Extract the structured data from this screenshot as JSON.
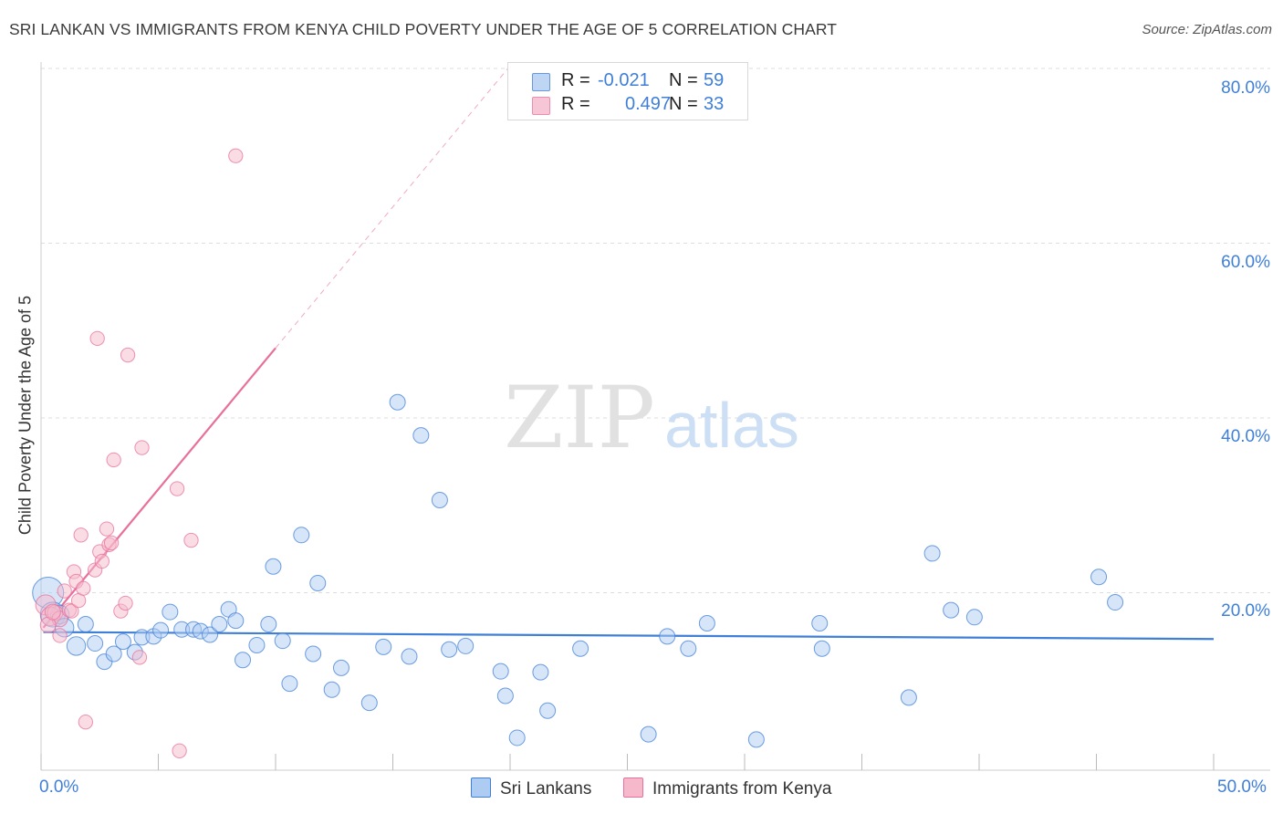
{
  "title": "SRI LANKAN VS IMMIGRANTS FROM KENYA CHILD POVERTY UNDER THE AGE OF 5 CORRELATION CHART",
  "source": "Source: ZipAtlas.com",
  "watermark": {
    "zip": "ZIP",
    "atlas": "atlas"
  },
  "colors": {
    "blue": "#3f7fd8",
    "blue_fill": "#aecbf2",
    "pink": "#e8709a",
    "pink_fill": "#f6b9cc",
    "grid": "#dddddd"
  },
  "legend": {
    "rows": [
      {
        "r_label": "R =",
        "r_value": "-0.021",
        "n_label": "N =",
        "n_value": "59"
      },
      {
        "r_label": "R =",
        "r_value": "0.497",
        "n_label": "N =",
        "n_value": "33"
      }
    ]
  },
  "bottom_legend": {
    "series1": "Sri Lankans",
    "series2": "Immigrants from Kenya"
  },
  "chart_data": {
    "type": "scatter",
    "title": "SRI LANKAN VS IMMIGRANTS FROM KENYA CHILD POVERTY UNDER THE AGE OF 5 CORRELATION CHART",
    "ylabel": "Child Poverty Under the Age of 5",
    "xlabel": "",
    "xlim": [
      0,
      50
    ],
    "ylim": [
      0,
      80
    ],
    "x_tick_labels": {
      "min": "0.0%",
      "max": "50.0%"
    },
    "y_tick_labels": [
      "20.0%",
      "40.0%",
      "60.0%",
      "80.0%"
    ],
    "y_tick_values": [
      20,
      40,
      60,
      80
    ],
    "series": [
      {
        "name": "Sri Lankans",
        "r": -0.021,
        "n": 59,
        "trend": {
          "x0": 0.1,
          "y0": 15.5,
          "x1": 50,
          "y1": 14.7
        },
        "points": [
          [
            0.3,
            20.0,
            2.0
          ],
          [
            0.5,
            17.5,
            1.6
          ],
          [
            0.8,
            17.5,
            1.2
          ],
          [
            1.0,
            16.0,
            1.2
          ],
          [
            1.5,
            13.9,
            1.2
          ],
          [
            1.9,
            16.4,
            1.0
          ],
          [
            2.3,
            14.2,
            1.0
          ],
          [
            2.7,
            12.1,
            1.0
          ],
          [
            3.1,
            13.0,
            1.0
          ],
          [
            3.5,
            14.4,
            1.0
          ],
          [
            4.0,
            13.2,
            1.0
          ],
          [
            4.3,
            14.9,
            1.0
          ],
          [
            4.8,
            15.0,
            1.0
          ],
          [
            5.1,
            15.7,
            1.0
          ],
          [
            5.5,
            17.8,
            1.0
          ],
          [
            6.0,
            15.8,
            1.0
          ],
          [
            6.5,
            15.8,
            1.0
          ],
          [
            6.8,
            15.6,
            1.0
          ],
          [
            7.2,
            15.2,
            1.0
          ],
          [
            7.6,
            16.4,
            1.0
          ],
          [
            8.0,
            18.1,
            1.0
          ],
          [
            8.3,
            16.8,
            1.0
          ],
          [
            8.6,
            12.3,
            1.0
          ],
          [
            9.2,
            14.0,
            1.0
          ],
          [
            9.7,
            16.4,
            1.0
          ],
          [
            9.9,
            23.0,
            1.0
          ],
          [
            10.3,
            14.5,
            1.0
          ],
          [
            10.6,
            9.6,
            1.0
          ],
          [
            11.1,
            26.6,
            1.0
          ],
          [
            11.6,
            13.0,
            1.0
          ],
          [
            11.8,
            21.1,
            1.0
          ],
          [
            12.4,
            8.9,
            1.0
          ],
          [
            12.8,
            11.4,
            1.0
          ],
          [
            14.0,
            7.4,
            1.0
          ],
          [
            14.6,
            13.8,
            1.0
          ],
          [
            15.7,
            12.7,
            1.0
          ],
          [
            15.2,
            41.8,
            1.0
          ],
          [
            16.2,
            38.0,
            1.0
          ],
          [
            17.0,
            30.6,
            1.0
          ],
          [
            17.4,
            13.5,
            1.0
          ],
          [
            18.1,
            13.9,
            1.0
          ],
          [
            19.6,
            11.0,
            1.0
          ],
          [
            19.8,
            8.2,
            1.0
          ],
          [
            20.3,
            3.4,
            1.0
          ],
          [
            21.3,
            10.9,
            1.0
          ],
          [
            21.6,
            6.5,
            1.0
          ],
          [
            23.0,
            13.6,
            1.0
          ],
          [
            25.9,
            3.8,
            1.0
          ],
          [
            26.7,
            15.0,
            1.0
          ],
          [
            27.6,
            13.6,
            1.0
          ],
          [
            28.4,
            16.5,
            1.0
          ],
          [
            30.5,
            3.2,
            1.0
          ],
          [
            33.2,
            16.5,
            1.0
          ],
          [
            33.3,
            13.6,
            1.0
          ],
          [
            37.0,
            8.0,
            1.0
          ],
          [
            38.0,
            24.5,
            1.0
          ],
          [
            38.8,
            18.0,
            1.0
          ],
          [
            39.8,
            17.2,
            1.0
          ],
          [
            45.1,
            21.8,
            1.0
          ],
          [
            45.8,
            18.9,
            1.0
          ]
        ]
      },
      {
        "name": "Immigrants from Kenya",
        "r": 0.497,
        "n": 33,
        "trend": {
          "x0": 0.1,
          "y0": 16.0,
          "x1": 10.0,
          "y1": 48.0,
          "x2": 20.0,
          "y2": 80.3
        },
        "points": [
          [
            0.2,
            18.6,
            1.3
          ],
          [
            0.4,
            17.3,
            1.2
          ],
          [
            0.6,
            17.7,
            1.0
          ],
          [
            0.8,
            17.0,
            1.0
          ],
          [
            0.8,
            15.1,
            0.9
          ],
          [
            1.0,
            20.2,
            0.9
          ],
          [
            1.2,
            18.0,
            0.9
          ],
          [
            1.3,
            17.9,
            0.9
          ],
          [
            1.4,
            22.4,
            0.9
          ],
          [
            1.5,
            21.3,
            0.9
          ],
          [
            1.6,
            19.1,
            0.9
          ],
          [
            1.7,
            26.6,
            0.9
          ],
          [
            1.8,
            20.5,
            0.9
          ],
          [
            1.9,
            5.2,
            0.9
          ],
          [
            2.3,
            22.6,
            0.9
          ],
          [
            2.4,
            49.1,
            0.9
          ],
          [
            2.5,
            24.7,
            0.9
          ],
          [
            2.6,
            23.6,
            0.9
          ],
          [
            2.8,
            27.3,
            0.9
          ],
          [
            2.9,
            25.5,
            0.9
          ],
          [
            3.0,
            25.7,
            0.9
          ],
          [
            3.1,
            35.2,
            0.9
          ],
          [
            3.4,
            17.9,
            0.9
          ],
          [
            3.6,
            18.8,
            0.9
          ],
          [
            3.7,
            47.2,
            0.9
          ],
          [
            4.2,
            12.6,
            0.9
          ],
          [
            4.3,
            36.6,
            0.9
          ],
          [
            5.8,
            31.9,
            0.9
          ],
          [
            5.9,
            1.9,
            0.9
          ],
          [
            6.4,
            26.0,
            0.9
          ],
          [
            8.3,
            70.0,
            0.9
          ],
          [
            0.3,
            16.3,
            1.0
          ],
          [
            0.5,
            17.8,
            1.0
          ]
        ]
      }
    ]
  }
}
